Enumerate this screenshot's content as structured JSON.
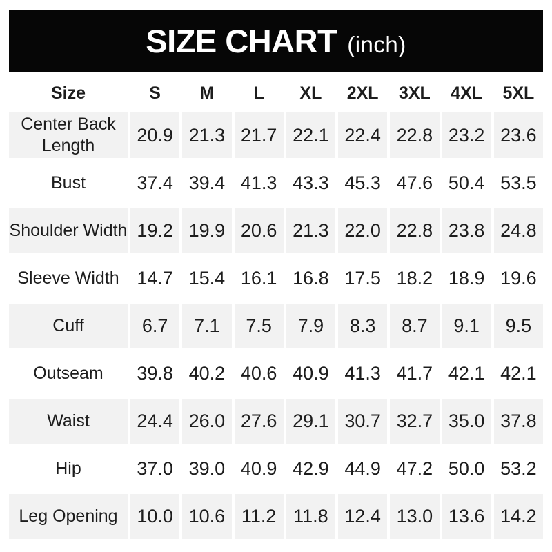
{
  "header": {
    "title": "SIZE CHART",
    "unit": "(inch)"
  },
  "colors": {
    "banner_bg": "#060606",
    "banner_text": "#ffffff",
    "shaded_row_bg": "#f2f2f2",
    "text": "#1d1d1d",
    "page_bg": "#ffffff"
  },
  "chart_data": {
    "type": "table",
    "title": "SIZE CHART (inch)",
    "unit": "inch",
    "columns": [
      "Size",
      "S",
      "M",
      "L",
      "XL",
      "2XL",
      "3XL",
      "4XL",
      "5XL"
    ],
    "rows": [
      {
        "label": "Center Back Length",
        "shaded": true,
        "values": [
          "20.9",
          "21.3",
          "21.7",
          "22.1",
          "22.4",
          "22.8",
          "23.2",
          "23.6"
        ]
      },
      {
        "label": "Bust",
        "shaded": false,
        "values": [
          "37.4",
          "39.4",
          "41.3",
          "43.3",
          "45.3",
          "47.6",
          "50.4",
          "53.5"
        ]
      },
      {
        "label": "Shoulder Width",
        "shaded": true,
        "values": [
          "19.2",
          "19.9",
          "20.6",
          "21.3",
          "22.0",
          "22.8",
          "23.8",
          "24.8"
        ]
      },
      {
        "label": "Sleeve Width",
        "shaded": false,
        "values": [
          "14.7",
          "15.4",
          "16.1",
          "16.8",
          "17.5",
          "18.2",
          "18.9",
          "19.6"
        ]
      },
      {
        "label": "Cuff",
        "shaded": true,
        "values": [
          "6.7",
          "7.1",
          "7.5",
          "7.9",
          "8.3",
          "8.7",
          "9.1",
          "9.5"
        ]
      },
      {
        "label": "Outseam",
        "shaded": false,
        "values": [
          "39.8",
          "40.2",
          "40.6",
          "40.9",
          "41.3",
          "41.7",
          "42.1",
          "42.1"
        ]
      },
      {
        "label": "Waist",
        "shaded": true,
        "values": [
          "24.4",
          "26.0",
          "27.6",
          "29.1",
          "30.7",
          "32.7",
          "35.0",
          "37.8"
        ]
      },
      {
        "label": "Hip",
        "shaded": false,
        "values": [
          "37.0",
          "39.0",
          "40.9",
          "42.9",
          "44.9",
          "47.2",
          "50.0",
          "53.2"
        ]
      },
      {
        "label": "Leg Opening",
        "shaded": true,
        "values": [
          "10.0",
          "10.6",
          "11.2",
          "11.8",
          "12.4",
          "13.0",
          "13.6",
          "14.2"
        ]
      }
    ],
    "layout": {
      "legend": false,
      "grid": false,
      "striping": "alternate rows shaded starting with first data row"
    }
  }
}
